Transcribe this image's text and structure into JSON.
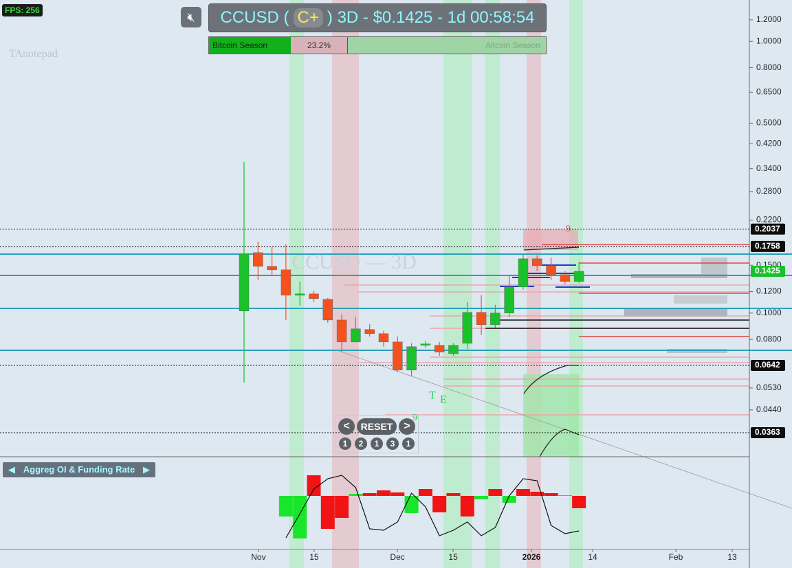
{
  "ui": {
    "fps": "FPS: 256",
    "title_left": "CCUSD (",
    "title_grade": "C+",
    "title_right": ") 3D - $0.1425 - 1d 00:58:54",
    "season_left": "Bitcoin Season",
    "season_pct": "23.2%",
    "season_right": "Altcoin Season",
    "watermark": "CCUSD — 3D",
    "notepad": "TAnotepad",
    "prev": "<",
    "reset": "RESET",
    "next": ">",
    "counts": [
      "1",
      "2",
      "1",
      "3",
      "1"
    ],
    "indicator": "Aggreg OI & Funding Rate",
    "annotations": [
      "T",
      "E",
      "9",
      "9"
    ]
  },
  "chart_data": [
    {
      "type": "candlestick",
      "log": true,
      "up_color": "#19c12a",
      "down_color": "#f4511e",
      "x": [
        0,
        1,
        2,
        3,
        4,
        5,
        6,
        7,
        8,
        9,
        10,
        11,
        12,
        13,
        14,
        15,
        16,
        17,
        18,
        19,
        20,
        21,
        22,
        23,
        24
      ],
      "open": [
        0.1018,
        0.1669,
        0.1486,
        0.1443,
        0.1163,
        0.1177,
        0.1124,
        0.0943,
        0.0783,
        0.087,
        0.084,
        0.0783,
        0.0617,
        0.0761,
        0.0761,
        0.0709,
        0.0774,
        0.1006,
        0.0906,
        0.1,
        0.1248,
        0.1584,
        0.1494,
        0.1385,
        0.1307
      ],
      "high": [
        0.36,
        0.1832,
        0.1748,
        0.179,
        0.1307,
        0.1205,
        0.1137,
        0.0989,
        0.0966,
        0.0911,
        0.086,
        0.082,
        0.0774,
        0.0788,
        0.0783,
        0.0774,
        0.1098,
        0.1163,
        0.1072,
        0.1385,
        0.165,
        0.163,
        0.1603,
        0.1427,
        0.154
      ],
      "low": [
        0.0555,
        0.1322,
        0.1385,
        0.0943,
        0.1066,
        0.1098,
        0.0922,
        0.0722,
        0.0783,
        0.082,
        0.0752,
        0.0606,
        0.0585,
        0.0743,
        0.0697,
        0.0697,
        0.0739,
        0.083,
        0.0885,
        0.0966,
        0.1219,
        0.1427,
        0.1322,
        0.1277,
        0.1292
      ],
      "close": [
        0.165,
        0.1486,
        0.1443,
        0.1163,
        0.1177,
        0.113,
        0.0943,
        0.0783,
        0.0875,
        0.084,
        0.0783,
        0.0617,
        0.0752,
        0.077,
        0.0718,
        0.0761,
        0.1006,
        0.0906,
        0.1,
        0.1248,
        0.1584,
        0.1494,
        0.1385,
        0.1307,
        0.1425
      ],
      "xlim": [
        -17.49,
        36.21
      ],
      "xticks": [
        {
          "value": 1.03,
          "label": "Nov"
        },
        {
          "value": 5.02,
          "label": "15"
        },
        {
          "value": 10.99,
          "label": "Dec"
        },
        {
          "value": 14.98,
          "label": "15"
        },
        {
          "value": 20.59,
          "label": "2026"
        },
        {
          "value": 24.98,
          "label": "14"
        },
        {
          "value": 30.94,
          "label": "Feb"
        },
        {
          "value": 34.98,
          "label": "13"
        }
      ],
      "ylim": [
        0.0296,
        1.42
      ],
      "yticks": [
        {
          "value": 1.2,
          "label": "1.2000"
        },
        {
          "value": 1.0,
          "label": "1.0000"
        },
        {
          "value": 0.8,
          "label": "0.8000"
        },
        {
          "value": 0.65,
          "label": "0.6500"
        },
        {
          "value": 0.5,
          "label": "0.5000"
        },
        {
          "value": 0.42,
          "label": "0.4200"
        },
        {
          "value": 0.34,
          "label": "0.3400"
        },
        {
          "value": 0.28,
          "label": "0.2800"
        },
        {
          "value": 0.22,
          "label": "0.2200"
        },
        {
          "value": 0.15,
          "label": "0.1500"
        },
        {
          "value": 0.12,
          "label": "0.1200"
        },
        {
          "value": 0.1,
          "label": "0.1000"
        },
        {
          "value": 0.08,
          "label": "0.0800"
        },
        {
          "value": 0.053,
          "label": "0.0530"
        },
        {
          "value": 0.044,
          "label": "0.0440"
        }
      ],
      "price_lines": [
        {
          "value": 0.2037,
          "label": "0.2037"
        },
        {
          "value": 0.1758,
          "label": "0.1758"
        },
        {
          "value": 0.0642,
          "label": "0.0642"
        },
        {
          "value": 0.0363,
          "label": "0.0363"
        }
      ],
      "current_price": {
        "value": 0.1425,
        "label": "0.1425"
      },
      "current_color": "#19c12a"
    },
    {
      "type": "bar_line",
      "x": [
        3,
        4,
        5,
        6,
        7,
        8,
        9,
        10,
        11,
        12,
        13,
        14,
        15,
        16,
        17,
        18,
        19,
        20,
        21,
        22,
        23,
        24
      ],
      "values": [
        -30,
        -62,
        30,
        -48,
        -32,
        3,
        4,
        8,
        5,
        -25,
        10,
        -24,
        4,
        -30,
        -5,
        10,
        -10,
        10,
        6,
        4,
        1,
        -18
      ],
      "colors": [
        "#19e62a",
        "#19e62a",
        "#f01414",
        "#f01414",
        "#f01414",
        "#19e62a",
        "#f01414",
        "#f01414",
        "#f01414",
        "#19e62a",
        "#f01414",
        "#f01414",
        "#f01414",
        "#f01414",
        "#19e62a",
        "#f01414",
        "#19e62a",
        "#f01414",
        "#f01414",
        "#f01414",
        "#19e62a",
        "#f01414"
      ],
      "line": [
        -61,
        -26,
        10,
        25,
        30,
        12,
        -48,
        -50,
        -38,
        4,
        -16,
        -58,
        -50,
        -38,
        -58,
        -46,
        0,
        25,
        22,
        -43,
        -55,
        -51
      ],
      "line_color": "#111111",
      "ylim": [
        -78,
        57
      ]
    }
  ]
}
